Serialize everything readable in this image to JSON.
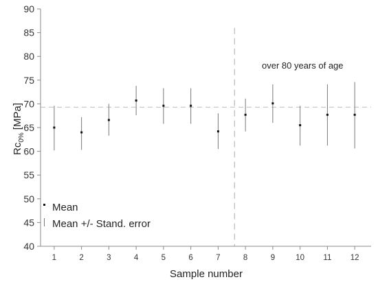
{
  "chart_data": {
    "type": "scatter",
    "subtype": "errorbar",
    "xlabel": "Sample number",
    "ylabel_main": "Rc",
    "ylabel_sub": "0%",
    "ylabel_unit": "[MPa]",
    "ylim": [
      40,
      90
    ],
    "yticks": [
      40,
      45,
      50,
      55,
      60,
      65,
      70,
      75,
      80,
      85,
      90
    ],
    "x": [
      1,
      2,
      3,
      4,
      5,
      6,
      7,
      8,
      9,
      10,
      11,
      12
    ],
    "series": [
      {
        "name": "Mean",
        "values": [
          65.0,
          64.0,
          66.6,
          70.7,
          69.6,
          69.6,
          64.2,
          67.7,
          70.1,
          65.5,
          67.7,
          67.7
        ]
      },
      {
        "name": "Mean +/- Stand. error",
        "lower": [
          60.2,
          60.3,
          63.3,
          67.6,
          65.8,
          65.8,
          60.5,
          64.2,
          66.0,
          61.2,
          61.2,
          60.6
        ],
        "upper": [
          69.6,
          67.2,
          70.0,
          73.8,
          73.3,
          73.3,
          68.0,
          71.1,
          74.1,
          69.6,
          74.1,
          74.6
        ]
      }
    ],
    "reference_line_y": 69.3,
    "divider_x": 7.6,
    "annotation": "over 80 years of age",
    "legend_position": "bottom-left",
    "grid": false
  }
}
